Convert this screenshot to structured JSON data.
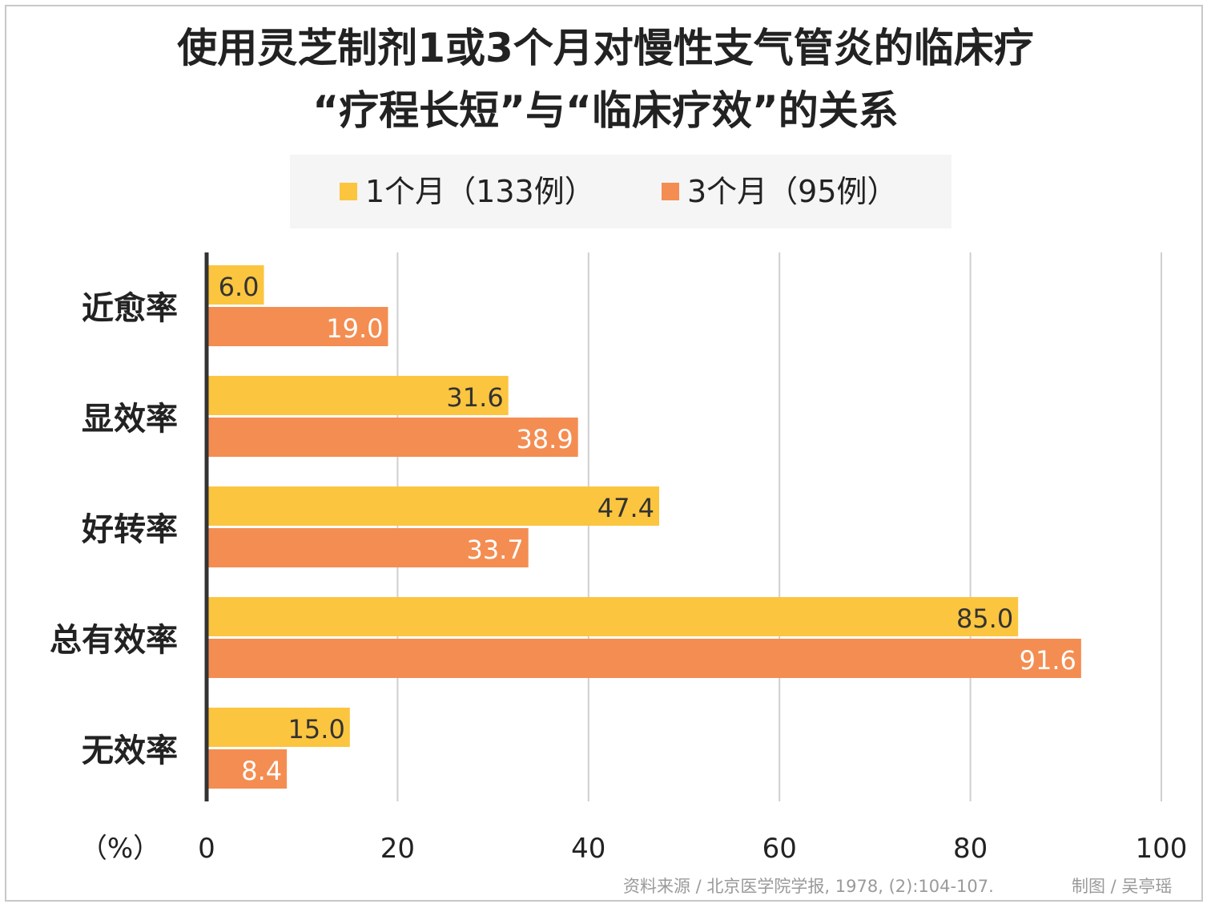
{
  "chart_data": {
    "type": "bar",
    "orientation": "horizontal",
    "title_line1": "使用灵芝制剂1或3个月对慢性支气管炎的临床疗",
    "title_line2": "“疗程长短”与“临床疗效”的关系",
    "categories": [
      "近愈率",
      "显效率",
      "好转率",
      "总有效率",
      "无效率"
    ],
    "series": [
      {
        "name": "1个月（133例）",
        "color": "#fbc53f",
        "label_color": "#333333",
        "values": [
          6.0,
          31.6,
          47.4,
          85.0,
          15.0
        ]
      },
      {
        "name": "3个月（95例）",
        "color": "#f48d52",
        "label_color": "#ffffff",
        "values": [
          19.0,
          38.9,
          33.7,
          91.6,
          8.4
        ]
      }
    ],
    "xlim": [
      0,
      100
    ],
    "ticks": [
      0,
      20,
      40,
      60,
      80,
      100
    ],
    "unit_label": "（%）",
    "grid": true,
    "legend_position": "top"
  },
  "footer": {
    "source": "资料来源 / 北京医学院学报, 1978, (2):104-107.",
    "credit": "制图 / 吴亭瑶"
  }
}
